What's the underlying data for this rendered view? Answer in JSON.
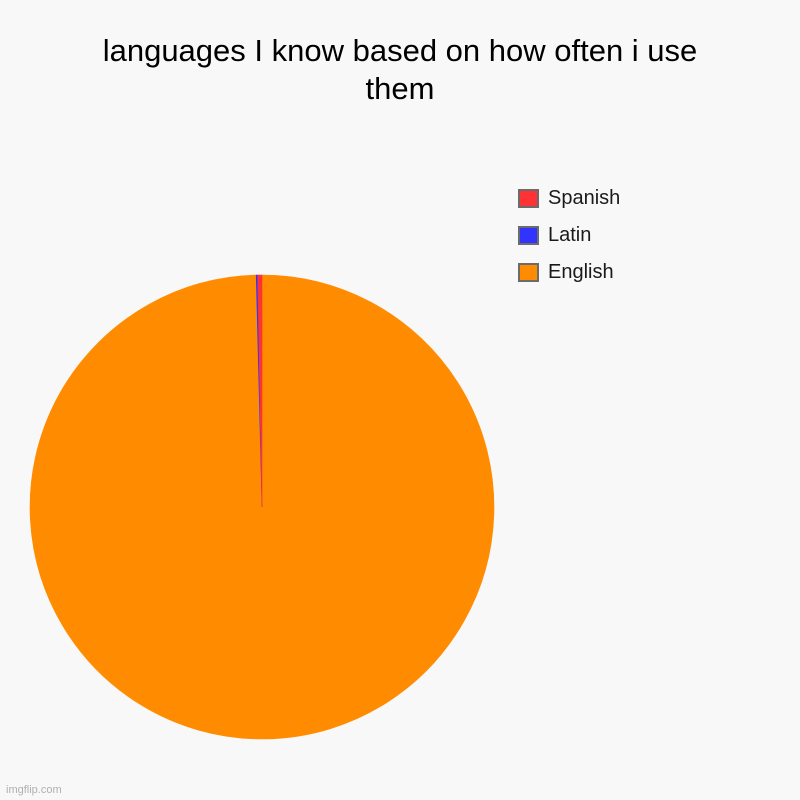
{
  "chart_data": {
    "type": "pie",
    "title_lines": [
      "languages I know based on how often i use",
      "them"
    ],
    "legend_position": "top-right",
    "slices": [
      {
        "name": "English",
        "value": 99.6,
        "color": "#ff8c00"
      },
      {
        "name": "Latin",
        "value": 0.1,
        "color": "#3333ff"
      },
      {
        "name": "Spanish",
        "value": 0.3,
        "color": "#ff3333"
      }
    ],
    "legend_order": [
      "Spanish",
      "Latin",
      "English"
    ]
  },
  "watermark": "imgflip.com"
}
